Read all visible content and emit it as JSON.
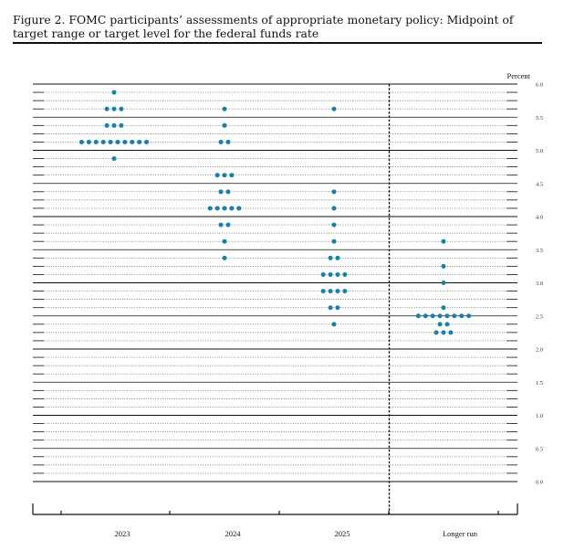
{
  "caption": {
    "text": "Figure 2.  FOMC participants’ assessments of appropriate monetary policy: Midpoint of target range or target level for the federal funds rate"
  },
  "colors": {
    "dot": "#1b7fa8",
    "line": "#111111"
  },
  "chart_data": {
    "type": "scatter",
    "title": "Figure 2.  FOMC participants’ assessments of appropriate monetary policy: Midpoint of target range or target level for the federal funds rate",
    "ylabel": "Percent",
    "ylim": [
      0,
      6.0
    ],
    "y_ticks": [
      "6.0",
      "5.5",
      "5.0",
      "4.5",
      "4.0",
      "3.5",
      "3.0",
      "2.5",
      "2.0",
      "1.5",
      "1.0",
      "0.5",
      "0.0"
    ],
    "y_tick_values": [
      6.0,
      5.5,
      5.0,
      4.5,
      4.0,
      3.5,
      3.0,
      2.5,
      2.0,
      1.5,
      1.0,
      0.5,
      0.0
    ],
    "minor_step": 0.125,
    "categories": [
      "2023",
      "2024",
      "2025",
      "Longer run"
    ],
    "points": [
      [
        [
          5.875,
          1
        ],
        [
          5.625,
          3
        ],
        [
          5.375,
          3
        ],
        [
          5.125,
          10
        ],
        [
          4.875,
          1
        ]
      ],
      [
        [
          5.625,
          1
        ],
        [
          5.375,
          1
        ],
        [
          5.125,
          2
        ],
        [
          4.625,
          3
        ],
        [
          4.375,
          2
        ],
        [
          4.125,
          5
        ],
        [
          3.875,
          2
        ],
        [
          3.625,
          1
        ],
        [
          3.375,
          1
        ]
      ],
      [
        [
          5.625,
          1
        ],
        [
          4.375,
          1
        ],
        [
          4.125,
          1
        ],
        [
          3.875,
          1
        ],
        [
          3.625,
          1
        ],
        [
          3.375,
          2
        ],
        [
          3.125,
          4
        ],
        [
          2.875,
          4
        ],
        [
          2.625,
          2
        ],
        [
          2.375,
          1
        ]
      ],
      [
        [
          3.625,
          1
        ],
        [
          3.25,
          1
        ],
        [
          3.0,
          1
        ],
        [
          2.625,
          1
        ],
        [
          2.5,
          8
        ],
        [
          2.375,
          2
        ],
        [
          2.25,
          3
        ]
      ]
    ],
    "divider_after_category": 2,
    "grid": true
  }
}
